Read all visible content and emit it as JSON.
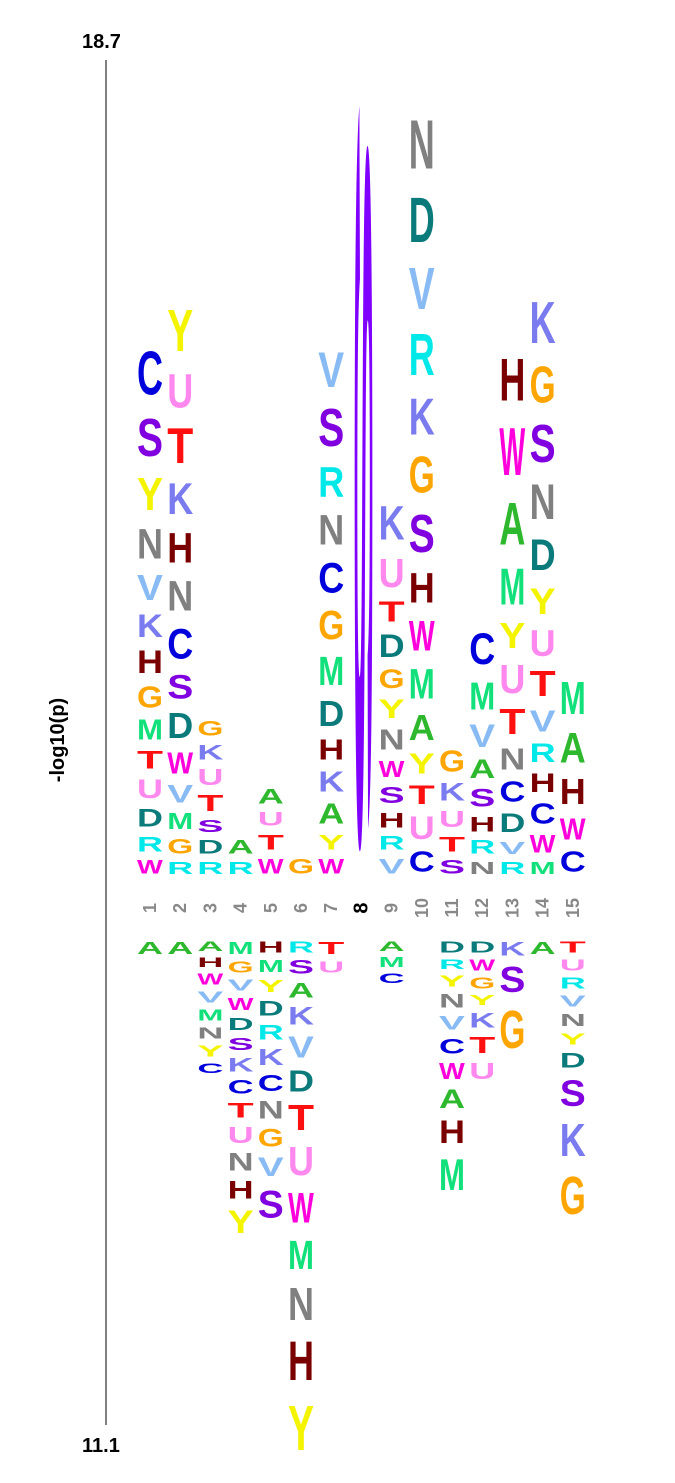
{
  "chart_data": {
    "type": "sequence-logo",
    "ylabel": "-log10(p)",
    "ylim_labels": {
      "top": "18.7",
      "bottom": "11.1"
    },
    "positions": [
      "1",
      "2",
      "3",
      "4",
      "5",
      "6",
      "7",
      "8",
      "9",
      "10",
      "11",
      "12",
      "13",
      "14",
      "15"
    ],
    "fixed_position": {
      "position": "8",
      "residue": "S"
    },
    "enriched": [
      [
        [
          "W",
          1.1
        ],
        [
          "R",
          1.2
        ],
        [
          "D",
          1.4
        ],
        [
          "U",
          1.5
        ],
        [
          "T",
          1.4
        ],
        [
          "M",
          1.6
        ],
        [
          "G",
          1.7
        ],
        [
          "H",
          1.8
        ],
        [
          "K",
          1.8
        ],
        [
          "V",
          2.0
        ],
        [
          "N",
          2.4
        ],
        [
          "Y",
          2.6
        ],
        [
          "S",
          3.0
        ],
        [
          "C",
          3.5
        ]
      ],
      [
        [
          "R",
          1.0
        ],
        [
          "G",
          1.2
        ],
        [
          "M",
          1.3
        ],
        [
          "V",
          1.4
        ],
        [
          "W",
          1.7
        ],
        [
          "D",
          2.0
        ],
        [
          "S",
          1.9
        ],
        [
          "C",
          2.4
        ],
        [
          "N",
          2.4
        ],
        [
          "H",
          2.4
        ],
        [
          "K",
          2.5
        ],
        [
          "T",
          2.8
        ],
        [
          "U",
          2.7
        ],
        [
          "Y",
          3.3
        ]
      ],
      [
        [
          "R",
          1.0
        ],
        [
          "D",
          1.1
        ],
        [
          "S",
          1.0
        ],
        [
          "T",
          1.3
        ],
        [
          "U",
          1.3
        ],
        [
          "K",
          1.2
        ],
        [
          "G",
          1.2
        ]
      ],
      [
        [
          "R",
          1.0
        ],
        [
          "A",
          1.1
        ]
      ],
      [
        [
          "W",
          1.2
        ],
        [
          "T",
          1.2
        ],
        [
          "U",
          1.1
        ],
        [
          "A",
          1.2
        ]
      ],
      [
        [
          "G",
          1.2
        ]
      ],
      [
        [
          "W",
          1.2
        ],
        [
          "Y",
          1.2
        ],
        [
          "A",
          1.6
        ],
        [
          "K",
          1.6
        ],
        [
          "H",
          1.6
        ],
        [
          "D",
          2.0
        ],
        [
          "M",
          2.3
        ],
        [
          "G",
          2.3
        ],
        [
          "C",
          2.4
        ],
        [
          "N",
          2.4
        ],
        [
          "R",
          2.4
        ],
        [
          "S",
          3.0
        ],
        [
          "V",
          2.8
        ]
      ],
      [],
      [
        [
          "V",
          1.2
        ],
        [
          "R",
          1.1
        ],
        [
          "H",
          1.2
        ],
        [
          "S",
          1.3
        ],
        [
          "W",
          1.3
        ],
        [
          "N",
          1.6
        ],
        [
          "Y",
          1.5
        ],
        [
          "G",
          1.5
        ],
        [
          "D",
          1.8
        ],
        [
          "T",
          1.6
        ],
        [
          "U",
          2.3
        ],
        [
          "K",
          2.7
        ]
      ],
      [
        [
          "C",
          1.6
        ],
        [
          "U",
          1.8
        ],
        [
          "T",
          1.5
        ],
        [
          "Y",
          1.6
        ],
        [
          "A",
          2.0
        ],
        [
          "M",
          2.4
        ],
        [
          "W",
          2.4
        ],
        [
          "H",
          2.4
        ],
        [
          "S",
          3.0
        ],
        [
          "G",
          2.9
        ],
        [
          "K",
          2.9
        ],
        [
          "R",
          3.3
        ],
        [
          "V",
          3.3
        ],
        [
          "D",
          3.6
        ],
        [
          "N",
          3.9
        ]
      ],
      [
        [
          "S",
          1.1
        ],
        [
          "T",
          1.2
        ],
        [
          "U",
          1.3
        ],
        [
          "K",
          1.4
        ],
        [
          "G",
          1.7
        ]
      ],
      [
        [
          "N",
          1.0
        ],
        [
          "R",
          1.1
        ],
        [
          "H",
          1.2
        ],
        [
          "S",
          1.4
        ],
        [
          "A",
          1.5
        ],
        [
          "V",
          1.8
        ],
        [
          "M",
          2.2
        ],
        [
          "C",
          2.5
        ]
      ],
      [
        [
          "R",
          1.0
        ],
        [
          "V",
          1.0
        ],
        [
          "D",
          1.5
        ],
        [
          "C",
          1.6
        ],
        [
          "N",
          1.7
        ],
        [
          "T",
          2.0
        ],
        [
          "U",
          2.3
        ],
        [
          "Y",
          2.0
        ],
        [
          "M",
          2.9
        ],
        [
          "A",
          3.4
        ],
        [
          "W",
          3.8
        ],
        [
          "H",
          3.4
        ]
      ],
      [
        [
          "M",
          1.0
        ],
        [
          "W",
          1.4
        ],
        [
          "C",
          1.6
        ],
        [
          "H",
          1.5
        ],
        [
          "R",
          1.5
        ],
        [
          "V",
          1.7
        ],
        [
          "T",
          2.0
        ],
        [
          "U",
          2.1
        ],
        [
          "Y",
          2.1
        ],
        [
          "D",
          2.5
        ],
        [
          "N",
          2.8
        ],
        [
          "S",
          3.0
        ],
        [
          "G",
          2.9
        ],
        [
          "K",
          3.3
        ]
      ],
      [
        [
          "C",
          1.6
        ],
        [
          "W",
          1.7
        ],
        [
          "H",
          2.0
        ],
        [
          "A",
          2.4
        ],
        [
          "M",
          2.6
        ]
      ]
    ],
    "depleted": [
      [
        [
          "A",
          1.0
        ]
      ],
      [
        [
          "A",
          1.0
        ]
      ],
      [
        [
          "A",
          0.8
        ],
        [
          "H",
          0.8
        ],
        [
          "W",
          0.9
        ],
        [
          "V",
          0.9
        ],
        [
          "M",
          0.9
        ],
        [
          "N",
          0.9
        ],
        [
          "Y",
          0.9
        ],
        [
          "C",
          0.8
        ]
      ],
      [
        [
          "M",
          1.0
        ],
        [
          "G",
          0.9
        ],
        [
          "V",
          0.9
        ],
        [
          "W",
          1.0
        ],
        [
          "D",
          1.0
        ],
        [
          "S",
          1.0
        ],
        [
          "K",
          1.1
        ],
        [
          "C",
          1.1
        ],
        [
          "T",
          1.2
        ],
        [
          "U",
          1.3
        ],
        [
          "N",
          1.4
        ],
        [
          "H",
          1.4
        ],
        [
          "Y",
          1.8
        ]
      ],
      [
        [
          "H",
          0.9
        ],
        [
          "M",
          1.0
        ],
        [
          "Y",
          1.0
        ],
        [
          "D",
          1.2
        ],
        [
          "R",
          1.2
        ],
        [
          "K",
          1.3
        ],
        [
          "C",
          1.3
        ],
        [
          "N",
          1.4
        ],
        [
          "G",
          1.4
        ],
        [
          "V",
          1.5
        ],
        [
          "S",
          2.2
        ]
      ],
      [
        [
          "R",
          0.9
        ],
        [
          "S",
          1.1
        ],
        [
          "A",
          1.2
        ],
        [
          "K",
          1.4
        ],
        [
          "V",
          1.7
        ],
        [
          "D",
          1.7
        ],
        [
          "T",
          2.0
        ],
        [
          "U",
          2.3
        ],
        [
          "W",
          2.4
        ],
        [
          "M",
          2.3
        ],
        [
          "N",
          2.6
        ],
        [
          "H",
          3.1
        ],
        [
          "Y",
          3.6
        ]
      ],
      [
        [
          "T",
          1.0
        ],
        [
          "U",
          0.9
        ]
      ],
      [],
      [
        [
          "A",
          0.8
        ],
        [
          "M",
          0.8
        ],
        [
          "C",
          0.8
        ]
      ],
      [],
      [
        [
          "D",
          0.9
        ],
        [
          "R",
          0.8
        ],
        [
          "Y",
          0.9
        ],
        [
          "N",
          1.1
        ],
        [
          "V",
          1.1
        ],
        [
          "C",
          1.2
        ],
        [
          "W",
          1.3
        ],
        [
          "A",
          1.5
        ],
        [
          "H",
          1.8
        ],
        [
          "M",
          2.5
        ]
      ],
      [
        [
          "D",
          0.9
        ],
        [
          "W",
          0.9
        ],
        [
          "G",
          0.9
        ],
        [
          "Y",
          0.8
        ],
        [
          "K",
          1.2
        ],
        [
          "T",
          1.3
        ],
        [
          "U",
          1.3
        ]
      ],
      [
        [
          "K",
          1.1
        ],
        [
          "S",
          2.0
        ],
        [
          "G",
          3.0
        ]
      ],
      [
        [
          "A",
          1.0
        ]
      ],
      [
        [
          "T",
          0.9
        ],
        [
          "U",
          0.9
        ],
        [
          "R",
          0.9
        ],
        [
          "V",
          0.9
        ],
        [
          "N",
          1.0
        ],
        [
          "Y",
          0.9
        ],
        [
          "D",
          1.2
        ],
        [
          "S",
          2.1
        ],
        [
          "K",
          2.6
        ],
        [
          "G",
          3.0
        ]
      ]
    ],
    "colors": {
      "A": "#2db82d",
      "C": "#0000dd",
      "D": "#0a7a7a",
      "G": "#ffa500",
      "H": "#7a0000",
      "K": "#7b7bf0",
      "M": "#12e07a",
      "N": "#808080",
      "R": "#00e8e8",
      "S": "#8000e0",
      "T": "#ff1010",
      "U": "#ff88ee",
      "V": "#88bbf4",
      "W": "#ff00dd",
      "Y": "#f4f400"
    },
    "fixed_color": "#8000ff"
  }
}
